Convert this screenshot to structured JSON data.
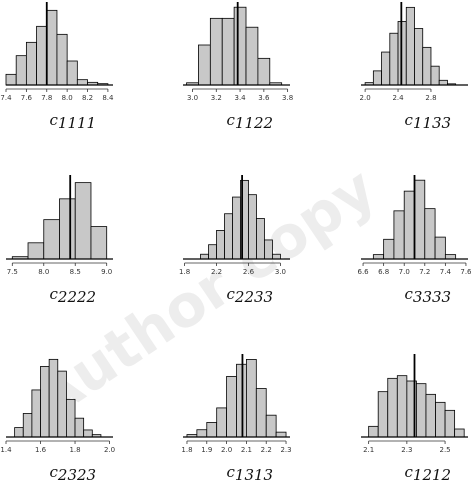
{
  "watermark": "Author copy",
  "bar_fill": "#c8c8c8",
  "bar_stroke": "#000000",
  "chart_data": [
    {
      "type": "histogram",
      "label_main": "c",
      "label_sub": "1111",
      "xticks": [
        "7.4",
        "7.6",
        "7.8",
        "8.0",
        "8.2",
        "8.4"
      ],
      "xtick_values": [
        7.4,
        7.6,
        7.8,
        8.0,
        8.2,
        8.4
      ],
      "xlim": [
        7.4,
        8.45
      ],
      "bin_edges": [
        7.4,
        7.5,
        7.6,
        7.7,
        7.8,
        7.9,
        8.0,
        8.1,
        8.2,
        8.3,
        8.4
      ],
      "counts": [
        4,
        11,
        16,
        22,
        28,
        19,
        9,
        2,
        1,
        0.5
      ],
      "ylim": [
        0,
        30
      ],
      "reference_line": 7.8
    },
    {
      "type": "histogram",
      "label_main": "c",
      "label_sub": "1122",
      "xticks": [
        "3.0",
        "3.2",
        "3.4",
        "3.6",
        "3.8"
      ],
      "xtick_values": [
        3.0,
        3.2,
        3.4,
        3.6,
        3.8
      ],
      "xlim": [
        2.92,
        3.82
      ],
      "bin_edges": [
        2.95,
        3.05,
        3.15,
        3.25,
        3.35,
        3.45,
        3.55,
        3.65,
        3.75
      ],
      "counts": [
        1,
        18,
        30,
        30,
        35,
        26,
        12,
        1
      ],
      "ylim": [
        0,
        36
      ],
      "reference_line": 3.38
    },
    {
      "type": "histogram",
      "label_main": "c",
      "label_sub": "1133",
      "xticks": [
        "2.0",
        "2.4",
        "2.8"
      ],
      "xtick_values": [
        2.0,
        2.4,
        2.8
      ],
      "xlim": [
        1.95,
        3.25
      ],
      "bin_edges": [
        2.0,
        2.1,
        2.2,
        2.3,
        2.4,
        2.5,
        2.6,
        2.7,
        2.8,
        2.9,
        3.0,
        3.1
      ],
      "counts": [
        1,
        6,
        14,
        22,
        27,
        33,
        24,
        16,
        8,
        2,
        0.5
      ],
      "ylim": [
        0,
        34
      ],
      "reference_line": 2.44
    },
    {
      "type": "histogram",
      "label_main": "c",
      "label_sub": "2222",
      "xticks": [
        "7.5",
        "8.0",
        "8.5",
        "9.0"
      ],
      "xtick_values": [
        7.5,
        8.0,
        8.5,
        9.0
      ],
      "xlim": [
        7.4,
        9.1
      ],
      "bin_edges": [
        7.5,
        7.75,
        8.0,
        8.25,
        8.5,
        8.75,
        9.0
      ],
      "counts": [
        1,
        7,
        17,
        26,
        33,
        14
      ],
      "ylim": [
        0,
        35
      ],
      "reference_line": 8.42
    },
    {
      "type": "histogram",
      "label_main": "c",
      "label_sub": "2233",
      "xticks": [
        "1.8",
        "2.2",
        "2.6",
        "3.0"
      ],
      "xtick_values": [
        1.8,
        2.2,
        2.6,
        3.0
      ],
      "xlim": [
        1.78,
        3.12
      ],
      "bin_edges": [
        2.0,
        2.1,
        2.2,
        2.3,
        2.4,
        2.5,
        2.6,
        2.7,
        2.8,
        2.9,
        3.0
      ],
      "counts": [
        2,
        6,
        12,
        19,
        26,
        33,
        27,
        17,
        8,
        2
      ],
      "ylim": [
        0,
        34
      ],
      "reference_line": 2.52
    },
    {
      "type": "histogram",
      "label_main": "c",
      "label_sub": "3333",
      "xticks": [
        "6.6",
        "6.8",
        "7.0",
        "7.2",
        "7.4",
        "7.6"
      ],
      "xtick_values": [
        6.6,
        6.8,
        7.0,
        7.2,
        7.4,
        7.6
      ],
      "xlim": [
        6.58,
        7.62
      ],
      "bin_edges": [
        6.7,
        6.8,
        6.9,
        7.0,
        7.1,
        7.2,
        7.3,
        7.4,
        7.5
      ],
      "counts": [
        2,
        9,
        22,
        31,
        36,
        23,
        10,
        2
      ],
      "ylim": [
        0,
        37
      ],
      "reference_line": 7.1
    },
    {
      "type": "histogram",
      "label_main": "c",
      "label_sub": "2323",
      "xticks": [
        "1.4",
        "1.6",
        "1.8",
        "2.0"
      ],
      "xtick_values": [
        1.4,
        1.6,
        1.8,
        2.0
      ],
      "xlim": [
        1.4,
        2.02
      ],
      "bin_edges": [
        1.45,
        1.5,
        1.55,
        1.6,
        1.65,
        1.7,
        1.75,
        1.8,
        1.85,
        1.9,
        1.95
      ],
      "counts": [
        4,
        10,
        20,
        30,
        33,
        28,
        16,
        8,
        3,
        1
      ],
      "ylim": [
        0,
        34
      ],
      "reference_line": null
    },
    {
      "type": "histogram",
      "label_main": "c",
      "label_sub": "1313",
      "xticks": [
        "1.8",
        "1.9",
        "2.0",
        "2.1",
        "2.2",
        "2.3"
      ],
      "xtick_values": [
        1.8,
        1.9,
        2.0,
        2.1,
        2.2,
        2.3
      ],
      "xlim": [
        1.78,
        2.32
      ],
      "bin_edges": [
        1.8,
        1.85,
        1.9,
        1.95,
        2.0,
        2.05,
        2.1,
        2.15,
        2.2,
        2.25,
        2.3
      ],
      "counts": [
        1,
        3,
        6,
        12,
        25,
        30,
        32,
        20,
        9,
        2
      ],
      "ylim": [
        0,
        33
      ],
      "reference_line": 2.08
    },
    {
      "type": "histogram",
      "label_main": "c",
      "label_sub": "1212",
      "xticks": [
        "2.1",
        "2.3",
        "2.5"
      ],
      "xtick_values": [
        2.1,
        2.3,
        2.5
      ],
      "xlim": [
        2.06,
        2.62
      ],
      "bin_edges": [
        2.1,
        2.15,
        2.2,
        2.25,
        2.3,
        2.35,
        2.4,
        2.45,
        2.5,
        2.55,
        2.6
      ],
      "counts": [
        4,
        17,
        22,
        23,
        21,
        20,
        16,
        13,
        10,
        3
      ],
      "ylim": [
        0,
        30
      ],
      "reference_line": 2.34
    }
  ]
}
